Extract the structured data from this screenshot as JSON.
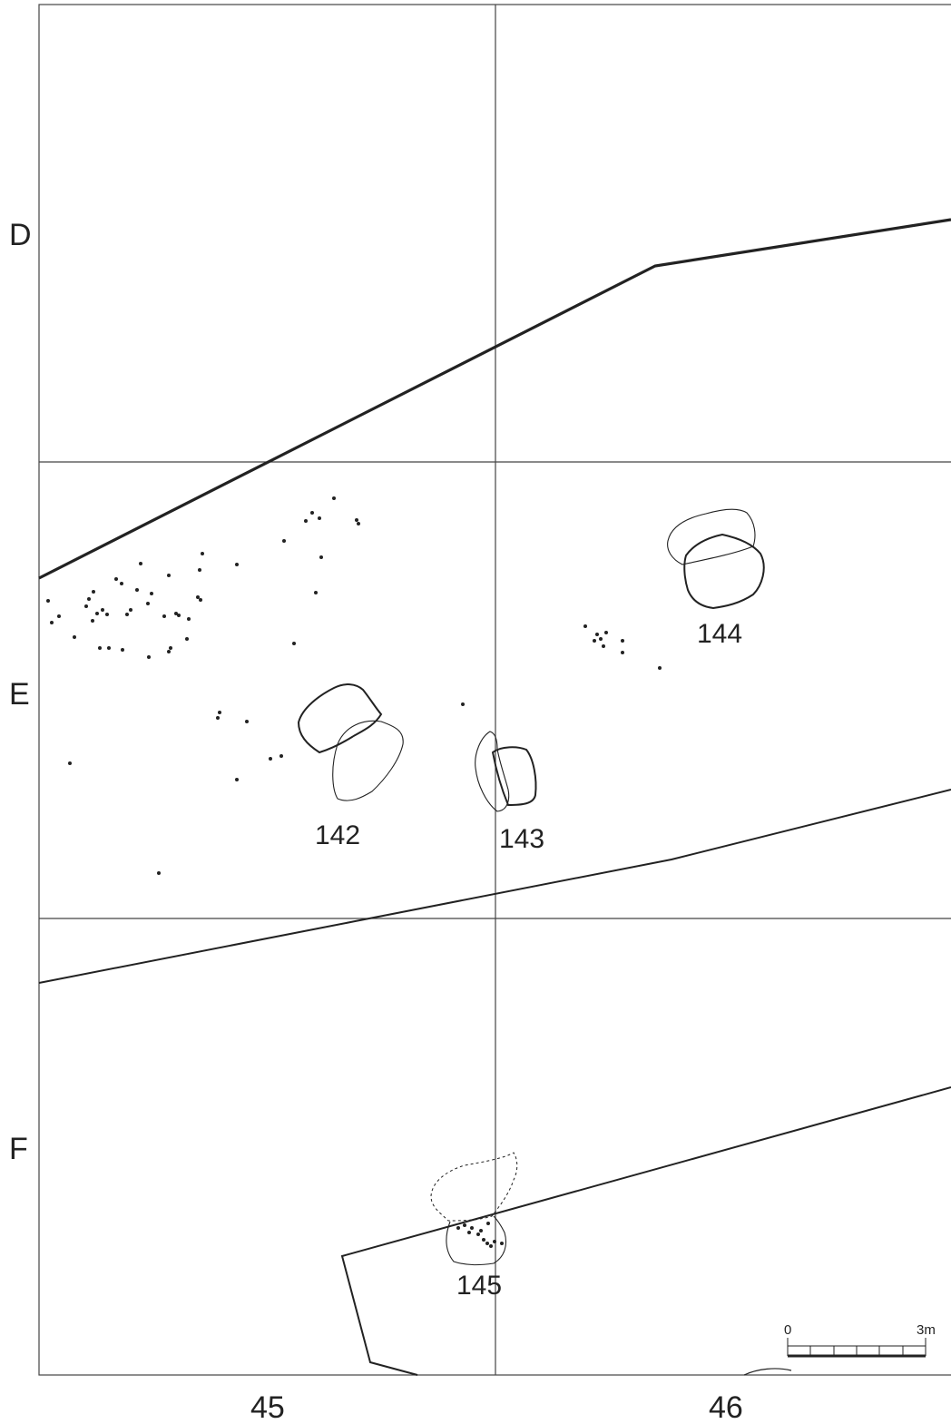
{
  "grid": {
    "rows": [
      "D",
      "E",
      "F"
    ],
    "columns": [
      "45",
      "46"
    ]
  },
  "features": [
    {
      "id": "142",
      "label": "142"
    },
    {
      "id": "143",
      "label": "143"
    },
    {
      "id": "144",
      "label": "144"
    },
    {
      "id": "145",
      "label": "145"
    }
  ],
  "scale": {
    "start": "0",
    "end": "3m"
  },
  "colors": {
    "line": "#222222",
    "grid": "#444444",
    "background": "#ffffff"
  }
}
